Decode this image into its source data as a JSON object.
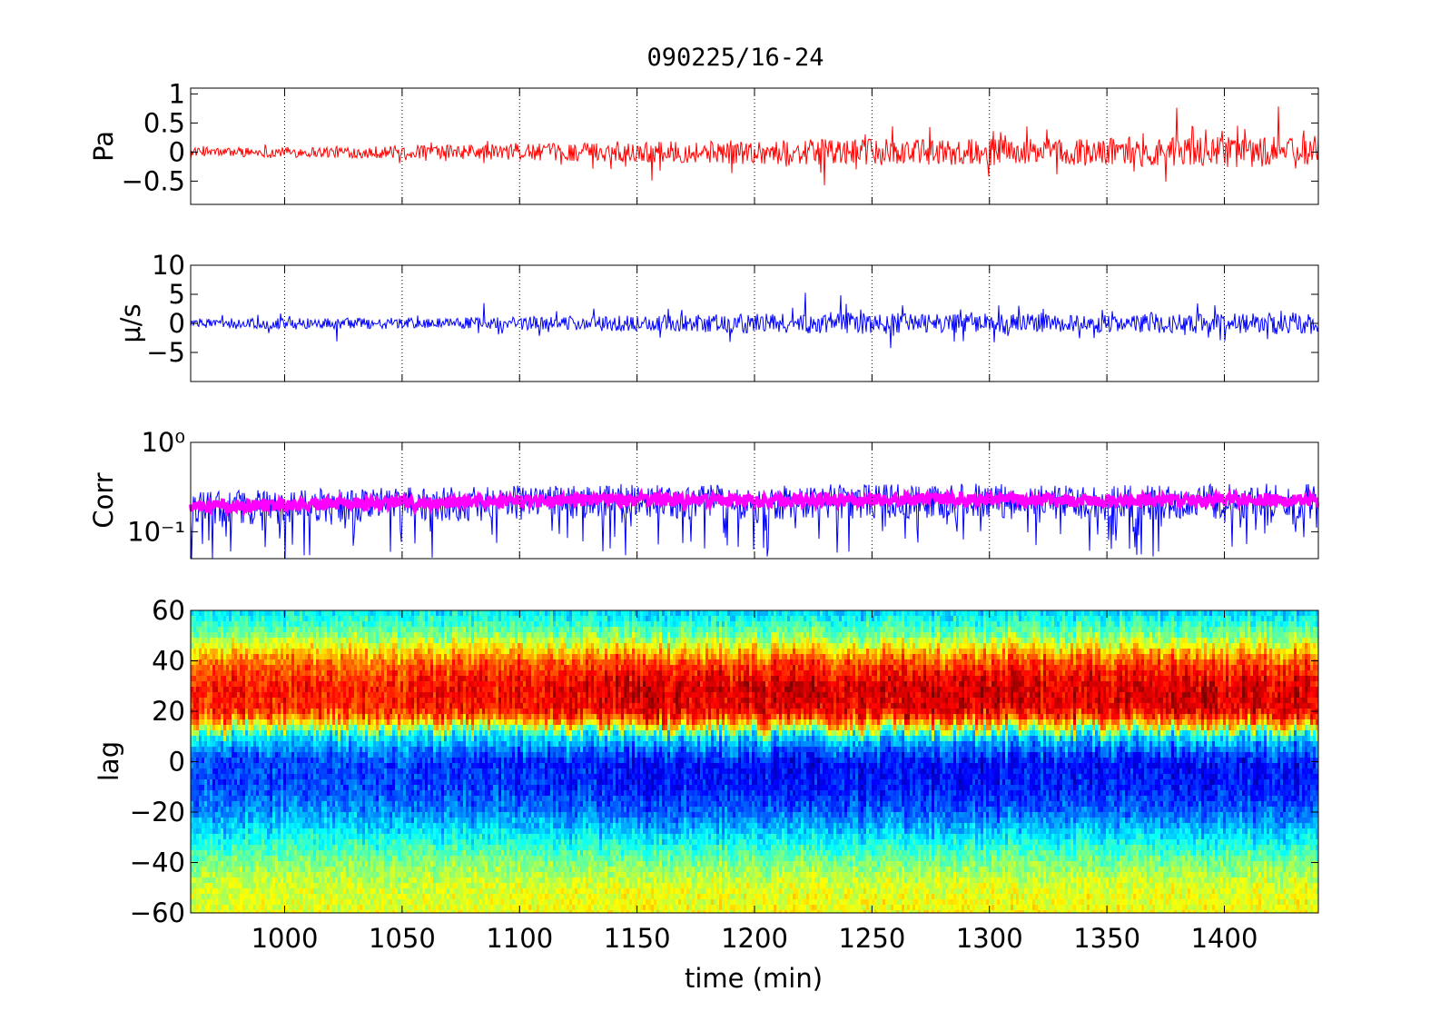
{
  "title": "090225/16-24",
  "chart_data": [
    {
      "id": "pressure",
      "type": "line",
      "ylabel": "Pa",
      "xlim": [
        960,
        1440
      ],
      "ylim": [
        -0.9,
        1.1
      ],
      "yticks": [
        -0.5,
        0,
        0.5,
        1
      ],
      "ytick_labels": [
        "−0.5",
        "0",
        "0.5",
        "1"
      ],
      "xticks": [
        1000,
        1050,
        1100,
        1150,
        1200,
        1250,
        1300,
        1350,
        1400
      ],
      "grid": "x-dotted",
      "colors": {
        "series": "#ff0000"
      },
      "series": [
        {
          "x": [
            960,
            1000,
            1050,
            1100,
            1150,
            1200,
            1250,
            1300,
            1350,
            1400,
            1440
          ],
          "amplitude": [
            0.1,
            0.13,
            0.16,
            0.2,
            0.25,
            0.3,
            0.32,
            0.33,
            0.35,
            0.37,
            0.4
          ],
          "values": [
            0,
            0,
            0,
            0,
            0,
            0,
            0,
            0,
            0,
            0,
            0
          ]
        }
      ]
    },
    {
      "id": "velocity",
      "type": "line",
      "ylabel": "μ/s",
      "xlim": [
        960,
        1440
      ],
      "ylim": [
        -10,
        10
      ],
      "yticks": [
        -5,
        0,
        5,
        10
      ],
      "ytick_labels": [
        "−5",
        "0",
        "5",
        "10"
      ],
      "xticks": [
        1000,
        1050,
        1100,
        1150,
        1200,
        1250,
        1300,
        1350,
        1400
      ],
      "grid": "x-dotted",
      "colors": {
        "series": "#0000ff"
      },
      "series": [
        {
          "x": [
            960,
            1000,
            1050,
            1100,
            1150,
            1200,
            1250,
            1300,
            1350,
            1400,
            1440
          ],
          "amplitude": [
            1.2,
            1.3,
            1.4,
            1.6,
            2.0,
            2.4,
            2.6,
            2.4,
            2.3,
            2.5,
            2.8
          ],
          "values": [
            0,
            0,
            0,
            0,
            0,
            0,
            0,
            0,
            0,
            0,
            0
          ]
        }
      ]
    },
    {
      "id": "correlation",
      "type": "line",
      "ylabel": "Corr",
      "yscale": "log",
      "xlim": [
        960,
        1440
      ],
      "ylim": [
        0.05,
        1
      ],
      "yticks": [
        0.1,
        1
      ],
      "ytick_labels": [
        "10⁻¹",
        "10⁰"
      ],
      "xticks": [
        1000,
        1050,
        1100,
        1150,
        1200,
        1250,
        1300,
        1350,
        1400
      ],
      "grid": "x-dotted",
      "colors": {
        "raw": "#0000ff",
        "smoothed": "#ff00ff"
      },
      "series": [
        {
          "x": [
            960,
            1000,
            1050,
            1100,
            1150,
            1200,
            1250,
            1300,
            1350,
            1400,
            1440
          ],
          "values": [
            0.18,
            0.19,
            0.2,
            0.21,
            0.22,
            0.21,
            0.22,
            0.22,
            0.21,
            0.22,
            0.22
          ]
        },
        {
          "x": [
            960,
            1000,
            1050,
            1100,
            1150,
            1200,
            1250,
            1300,
            1350,
            1400,
            1440
          ],
          "values": [
            0.19,
            0.2,
            0.21,
            0.22,
            0.23,
            0.22,
            0.23,
            0.23,
            0.22,
            0.23,
            0.23
          ]
        }
      ]
    },
    {
      "id": "lag",
      "type": "heatmap",
      "xlabel": "time (min)",
      "ylabel": "lag",
      "xlim": [
        960,
        1440
      ],
      "ylim": [
        -60,
        60
      ],
      "yticks": [
        -60,
        -40,
        -20,
        0,
        20,
        40,
        60
      ],
      "ytick_labels": [
        "−60",
        "−40",
        "−20",
        "0",
        "20",
        "40",
        "60"
      ],
      "xticks": [
        1000,
        1050,
        1100,
        1150,
        1200,
        1250,
        1300,
        1350,
        1400
      ],
      "xtick_labels": [
        "1000",
        "1050",
        "1100",
        "1150",
        "1200",
        "1250",
        "1300",
        "1350",
        "1400"
      ],
      "colormap": "jet",
      "lag_profile": {
        "lag": [
          -60,
          -50,
          -40,
          -30,
          -20,
          -10,
          0,
          10,
          15,
          20,
          30,
          40,
          50,
          60
        ],
        "level": [
          0.62,
          0.6,
          0.5,
          0.36,
          0.22,
          0.14,
          0.13,
          0.34,
          0.7,
          0.9,
          0.92,
          0.8,
          0.5,
          0.33
        ]
      },
      "time_strength": {
        "x": [
          960,
          1000,
          1050,
          1100,
          1150,
          1200,
          1250,
          1300,
          1350,
          1400,
          1440
        ],
        "values": [
          0.85,
          0.85,
          0.85,
          0.92,
          1.0,
          1.0,
          1.0,
          1.0,
          1.0,
          1.0,
          1.0
        ]
      }
    }
  ]
}
